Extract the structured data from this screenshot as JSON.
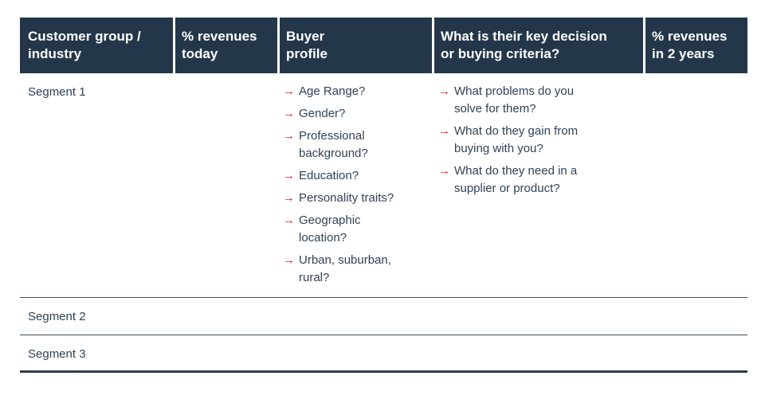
{
  "colors": {
    "header_bg": "#24374A",
    "header_text": "#ffffff",
    "body_text": "#2F4256",
    "bullet_red": "#D7291F",
    "row_line": "#3F4E5E",
    "bottom_line": "#2C3E50"
  },
  "icons": {
    "arrow_bullet": "→"
  },
  "header": {
    "columns": [
      {
        "label": "Customer group /\nindustry"
      },
      {
        "label": "% revenues\ntoday"
      },
      {
        "label": "Buyer\nprofile"
      },
      {
        "label": "What is their key decision\nor buying criteria?"
      },
      {
        "label": "% revenues\nin 2 years"
      }
    ]
  },
  "rows": [
    {
      "segment": "Segment 1",
      "revenues_today": "",
      "buyer_profile": [
        "Age Range?",
        "Gender?",
        "Professional\nbackground?",
        "Education?",
        "Personality traits?",
        "Geographic\nlocation?",
        "Urban, suburban,\nrural?"
      ],
      "decision_criteria": [
        "What problems do you\nsolve for them?",
        "What do they gain from\nbuying with you?",
        "What do they need in a\nsupplier or product?"
      ],
      "revenues_2yr": ""
    },
    {
      "segment": "Segment 2",
      "revenues_today": "",
      "buyer_profile": [],
      "decision_criteria": [],
      "revenues_2yr": ""
    },
    {
      "segment": "Segment 3",
      "revenues_today": "",
      "buyer_profile": [],
      "decision_criteria": [],
      "revenues_2yr": ""
    }
  ]
}
